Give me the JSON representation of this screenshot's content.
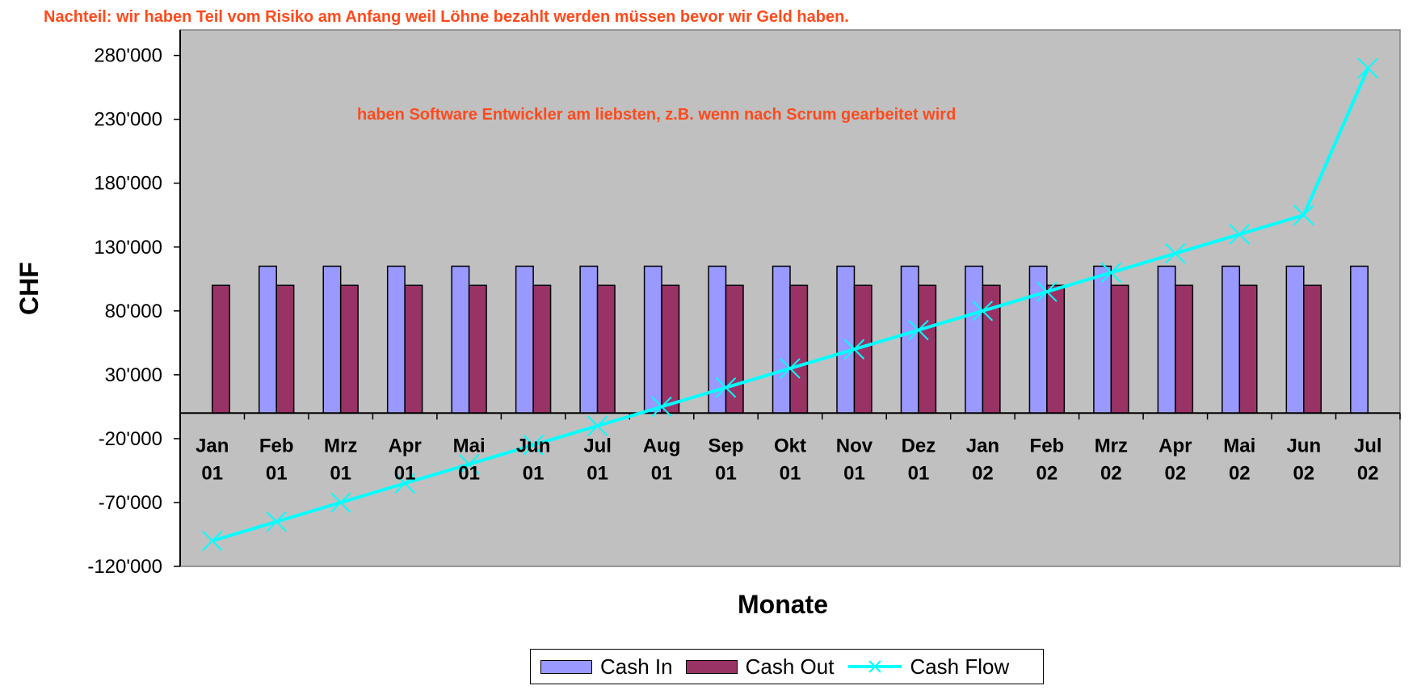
{
  "notes": {
    "top": "Nachteil: wir haben Teil vom Risiko am Anfang weil Löhne bezahlt werden müssen bevor wir Geld haben.",
    "middle": "haben Software Entwickler am liebsten, z.B. wenn nach Scrum gearbeitet wird"
  },
  "colors": {
    "cash_in": "#9999ff",
    "cash_out": "#993366",
    "cash_flow": "#00ffff",
    "plot_bg": "#c0c0c0",
    "note": "#ff4a1c"
  },
  "chart_data": {
    "type": "bar",
    "title": "",
    "xlabel": "Monate",
    "ylabel": "CHF",
    "ylim": [
      -120000,
      300000
    ],
    "yticks": [
      -120000,
      -70000,
      -20000,
      30000,
      80000,
      130000,
      180000,
      230000,
      280000
    ],
    "ytick_labels": [
      "-120'000",
      "-70'000",
      "-20'000",
      "30'000",
      "80'000",
      "130'000",
      "180'000",
      "230'000",
      "280'000"
    ],
    "grid": false,
    "legend": "bottom",
    "categories": [
      [
        "Jan",
        "01"
      ],
      [
        "Feb",
        "01"
      ],
      [
        "Mrz",
        "01"
      ],
      [
        "Apr",
        "01"
      ],
      [
        "Mai",
        "01"
      ],
      [
        "Jun",
        "01"
      ],
      [
        "Jul",
        "01"
      ],
      [
        "Aug",
        "01"
      ],
      [
        "Sep",
        "01"
      ],
      [
        "Okt",
        "01"
      ],
      [
        "Nov",
        "01"
      ],
      [
        "Dez",
        "01"
      ],
      [
        "Jan",
        "02"
      ],
      [
        "Feb",
        "02"
      ],
      [
        "Mrz",
        "02"
      ],
      [
        "Apr",
        "02"
      ],
      [
        "Mai",
        "02"
      ],
      [
        "Jun",
        "02"
      ],
      [
        "Jul",
        "02"
      ]
    ],
    "series": [
      {
        "name": "Cash In",
        "type": "bar",
        "values": [
          0,
          115000,
          115000,
          115000,
          115000,
          115000,
          115000,
          115000,
          115000,
          115000,
          115000,
          115000,
          115000,
          115000,
          115000,
          115000,
          115000,
          115000,
          115000
        ]
      },
      {
        "name": "Cash Out",
        "type": "bar",
        "values": [
          100000,
          100000,
          100000,
          100000,
          100000,
          100000,
          100000,
          100000,
          100000,
          100000,
          100000,
          100000,
          100000,
          100000,
          100000,
          100000,
          100000,
          100000,
          0
        ]
      },
      {
        "name": "Cash Flow",
        "type": "line",
        "values": [
          -100000,
          -85000,
          -70000,
          -55000,
          -40000,
          -25000,
          -10000,
          5000,
          20000,
          35000,
          50000,
          65000,
          80000,
          95000,
          110000,
          125000,
          140000,
          155000,
          270000
        ]
      }
    ]
  }
}
